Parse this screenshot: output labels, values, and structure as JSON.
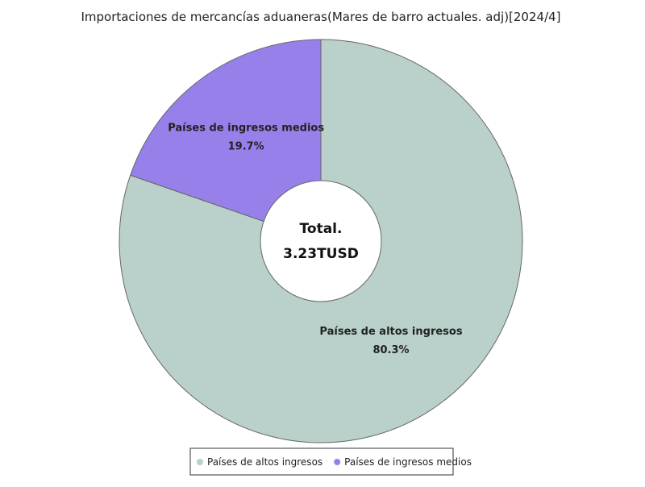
{
  "chart_data": {
    "type": "pie",
    "title": "Importaciones de mercancías aduaneras(Mares de barro actuales. adj)[2024/4]",
    "categories": [
      "Países de altos ingresos",
      "Países de ingresos medios"
    ],
    "values": [
      80.3,
      19.7
    ],
    "value_labels": [
      "80.3%",
      "19.7%"
    ],
    "colors": [
      "#b9d1ca",
      "#9880eb"
    ],
    "center_label": "Total.",
    "center_value": "3.23TUSD",
    "legend": {
      "position": "bottom",
      "entries": [
        "Países de altos ingresos",
        "Países de ingresos medios"
      ]
    }
  }
}
